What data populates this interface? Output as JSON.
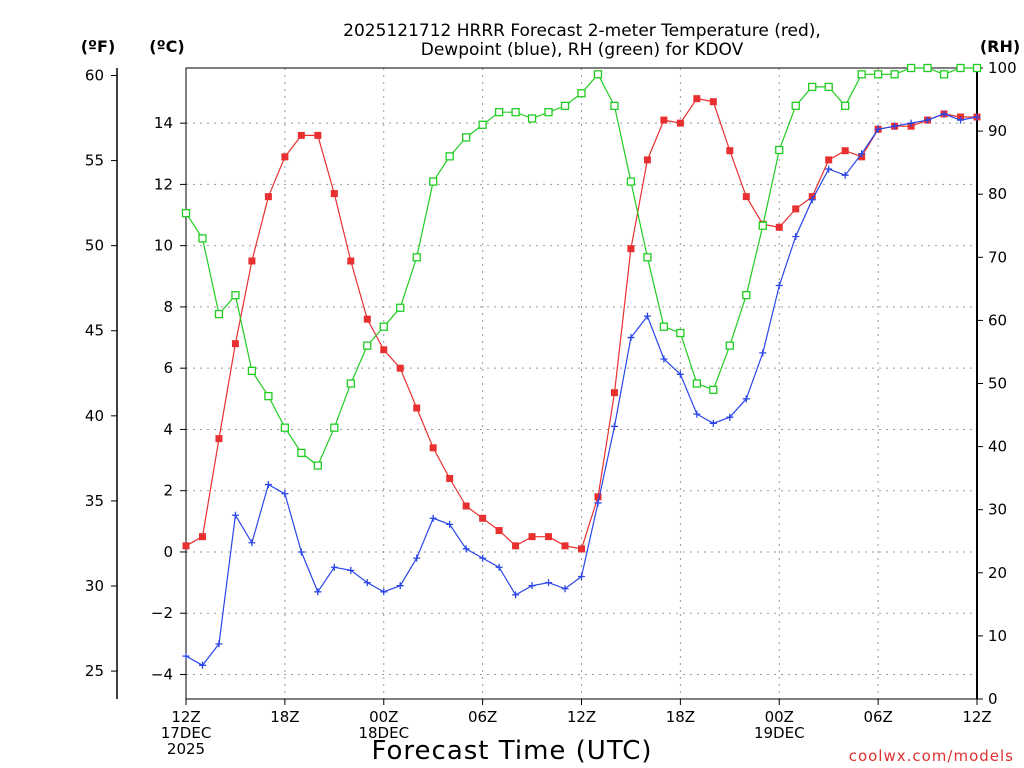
{
  "chart_data": {
    "type": "line",
    "title_lines": [
      "2025121712 HRRR Forecast 2-meter Temperature (red),",
      "Dewpoint (blue), RH (green) for KDOV"
    ],
    "xlabel": "Forecast Time (UTC)",
    "credit": "coolwx.com/models",
    "units": {
      "fahrenheit": "(ºF)",
      "celsius": "(ºC)",
      "rh": "(RH)"
    },
    "x_range": [
      0,
      48
    ],
    "celsius_range": [
      -4.8,
      15.8
    ],
    "rh_range": [
      0,
      100
    ],
    "fahrenheit_ticks": [
      25,
      30,
      35,
      40,
      45,
      50,
      55,
      60
    ],
    "celsius_ticks": [
      -4,
      -2,
      0,
      2,
      4,
      6,
      8,
      10,
      12,
      14
    ],
    "rh_ticks": [
      0,
      10,
      20,
      30,
      40,
      50,
      60,
      70,
      80,
      90,
      100
    ],
    "x_ticks": [
      {
        "x": 0,
        "lines": [
          "12Z",
          "17DEC",
          "2025"
        ]
      },
      {
        "x": 6,
        "lines": [
          "18Z"
        ]
      },
      {
        "x": 12,
        "lines": [
          "00Z",
          "18DEC"
        ]
      },
      {
        "x": 18,
        "lines": [
          "06Z"
        ]
      },
      {
        "x": 24,
        "lines": [
          "12Z"
        ]
      },
      {
        "x": 30,
        "lines": [
          "18Z"
        ]
      },
      {
        "x": 36,
        "lines": [
          "00Z",
          "19DEC"
        ]
      },
      {
        "x": 42,
        "lines": [
          "06Z"
        ]
      },
      {
        "x": 48,
        "lines": [
          "12Z"
        ]
      }
    ],
    "series": [
      {
        "key": "temperature",
        "color": "#e83030",
        "marker": "filled-square",
        "values": [
          0.2,
          0.5,
          3.7,
          6.8,
          9.5,
          11.6,
          12.9,
          13.6,
          13.6,
          11.7,
          9.5,
          7.6,
          6.6,
          6.0,
          4.7,
          3.4,
          2.4,
          1.5,
          1.1,
          0.7,
          0.2,
          0.5,
          0.5,
          0.2,
          0.1,
          1.8,
          5.2,
          9.9,
          12.8,
          14.1,
          14.0,
          14.8,
          14.7,
          13.1,
          11.6,
          10.7,
          10.6,
          11.2,
          11.6,
          12.8,
          13.1,
          12.9,
          13.8,
          13.9,
          13.9,
          14.1,
          14.3,
          14.2,
          14.2
        ]
      },
      {
        "key": "dewpoint",
        "color": "#2a46e8",
        "marker": "plus",
        "values": [
          -3.4,
          -3.7,
          -3.0,
          1.2,
          0.3,
          2.2,
          1.9,
          0.0,
          -1.3,
          -0.5,
          -0.6,
          -1.0,
          -1.3,
          -1.1,
          -0.2,
          1.1,
          0.9,
          0.1,
          -0.2,
          -0.5,
          -1.4,
          -1.1,
          -1.0,
          -1.2,
          -0.8,
          1.6,
          4.1,
          7.0,
          7.7,
          6.3,
          5.8,
          4.5,
          4.2,
          4.4,
          5.0,
          6.5,
          8.7,
          10.3,
          11.5,
          12.5,
          12.3,
          13.0,
          13.8,
          13.9,
          14.0,
          14.1,
          14.3,
          14.1,
          14.2
        ]
      },
      {
        "key": "rh",
        "color": "#22cc22",
        "marker": "open-square",
        "values": [
          77,
          73,
          61,
          64,
          52,
          48,
          43,
          39,
          37,
          43,
          50,
          56,
          59,
          62,
          70,
          82,
          86,
          89,
          91,
          93,
          93,
          92,
          93,
          94,
          96,
          99,
          94,
          82,
          70,
          59,
          58,
          50,
          49,
          56,
          64,
          75,
          87,
          94,
          97,
          97,
          94,
          99,
          99,
          99,
          100,
          100,
          99,
          100,
          100
        ]
      }
    ]
  }
}
